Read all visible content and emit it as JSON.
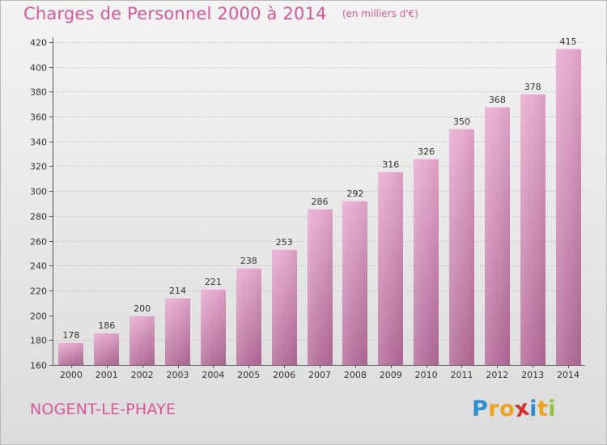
{
  "header": {
    "title": "Charges de Personnel 2000 à 2014",
    "unit": "(en milliers d'€)"
  },
  "footer": {
    "commune": "NOGENT-LE-PHAYE",
    "logo_letters": [
      "P",
      "r",
      "o",
      "x",
      "i",
      "t",
      "i"
    ],
    "logo_colors": [
      "#2d8fd0",
      "#f1a21a",
      "#f1a21a",
      "#d62f2f",
      "#2d8fd0",
      "#f1a21a",
      "#8dc63f"
    ]
  },
  "chart_data": {
    "type": "bar",
    "categories": [
      "2000",
      "2001",
      "2002",
      "2003",
      "2004",
      "2005",
      "2006",
      "2007",
      "2008",
      "2009",
      "2010",
      "2011",
      "2012",
      "2013",
      "2014"
    ],
    "values": [
      178,
      186,
      200,
      214,
      221,
      238,
      253,
      286,
      292,
      316,
      326,
      350,
      368,
      378,
      415
    ],
    "title": "Charges de Personnel 2000 à 2014",
    "subtitle": "(en milliers d'€)",
    "xlabel": "",
    "ylabel": "",
    "ylim": [
      160,
      420
    ],
    "yticks": [
      160,
      180,
      200,
      220,
      240,
      260,
      280,
      300,
      320,
      340,
      360,
      380,
      400,
      420
    ],
    "grid": true,
    "bar_color": "#d98fbb",
    "legend": "none"
  }
}
